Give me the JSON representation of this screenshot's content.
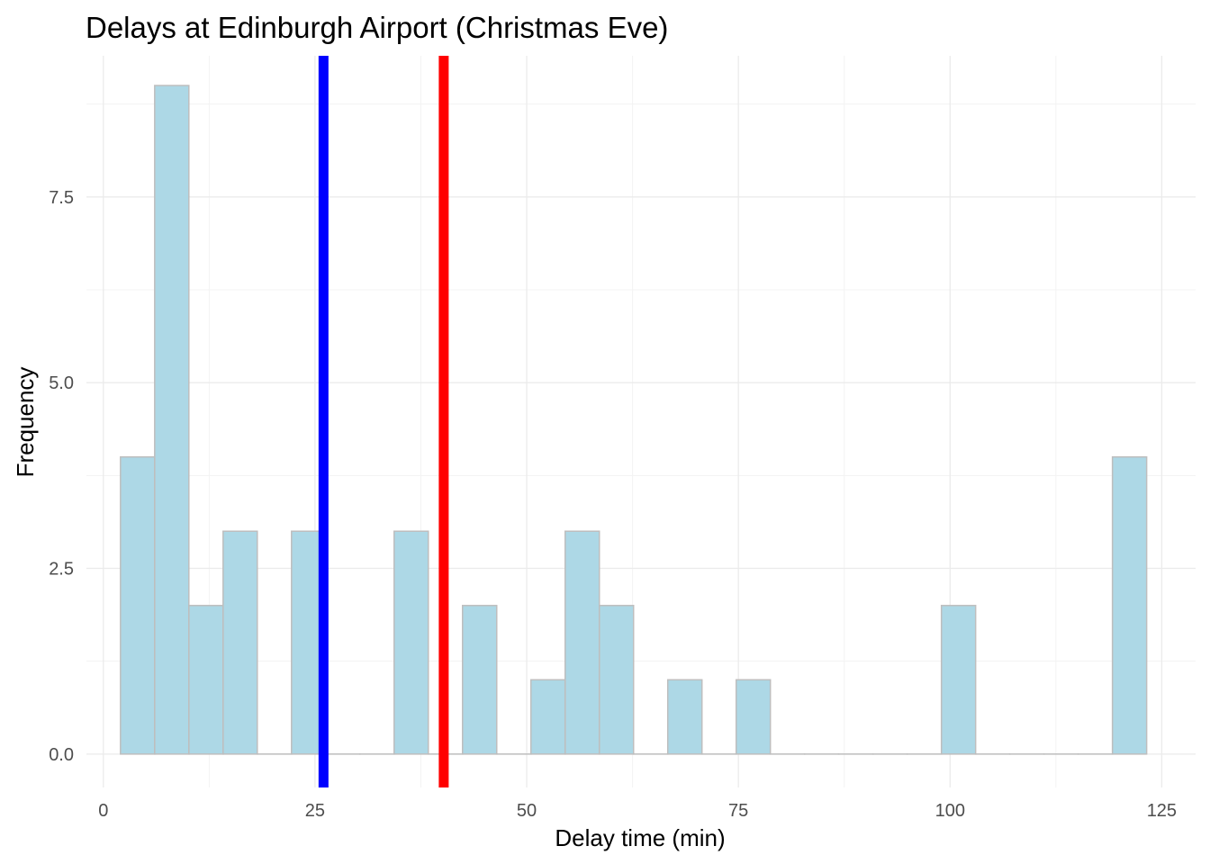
{
  "chart_data": {
    "type": "bar",
    "title": "Delays at Edinburgh Airport (Christmas Eve)",
    "xlabel": "Delay time (min)",
    "ylabel": "Frequency",
    "xlim": [
      -2,
      129
    ],
    "ylim": [
      -0.45,
      9.4
    ],
    "x_ticks": [
      0,
      25,
      50,
      75,
      100,
      125
    ],
    "x_tick_labels": [
      "0",
      "25",
      "50",
      "75",
      "100",
      "125"
    ],
    "y_ticks": [
      0,
      2.5,
      5,
      7.5
    ],
    "y_tick_labels": [
      "0.0",
      "2.5",
      "5.0",
      "7.5"
    ],
    "bin_width": 4.04,
    "bins": [
      {
        "x0": 2.02,
        "x1": 6.06,
        "count": 4
      },
      {
        "x0": 6.06,
        "x1": 10.1,
        "count": 9
      },
      {
        "x0": 10.1,
        "x1": 14.14,
        "count": 2
      },
      {
        "x0": 14.14,
        "x1": 18.18,
        "count": 3
      },
      {
        "x0": 18.18,
        "x1": 22.22,
        "count": 0
      },
      {
        "x0": 22.22,
        "x1": 26.26,
        "count": 3
      },
      {
        "x0": 26.26,
        "x1": 30.3,
        "count": 0
      },
      {
        "x0": 30.3,
        "x1": 34.34,
        "count": 0
      },
      {
        "x0": 34.34,
        "x1": 38.38,
        "count": 3
      },
      {
        "x0": 38.38,
        "x1": 42.42,
        "count": 0
      },
      {
        "x0": 42.42,
        "x1": 46.46,
        "count": 2
      },
      {
        "x0": 46.46,
        "x1": 50.5,
        "count": 0
      },
      {
        "x0": 50.5,
        "x1": 54.54,
        "count": 1
      },
      {
        "x0": 54.54,
        "x1": 58.58,
        "count": 3
      },
      {
        "x0": 58.58,
        "x1": 62.62,
        "count": 2
      },
      {
        "x0": 62.62,
        "x1": 66.66,
        "count": 0
      },
      {
        "x0": 66.66,
        "x1": 70.7,
        "count": 1
      },
      {
        "x0": 70.7,
        "x1": 74.74,
        "count": 0
      },
      {
        "x0": 74.74,
        "x1": 78.78,
        "count": 1
      },
      {
        "x0": 78.78,
        "x1": 82.82,
        "count": 0
      },
      {
        "x0": 82.82,
        "x1": 86.86,
        "count": 0
      },
      {
        "x0": 86.86,
        "x1": 90.9,
        "count": 0
      },
      {
        "x0": 90.9,
        "x1": 94.94,
        "count": 0
      },
      {
        "x0": 94.94,
        "x1": 98.98,
        "count": 0
      },
      {
        "x0": 98.98,
        "x1": 103.02,
        "count": 2
      },
      {
        "x0": 103.02,
        "x1": 107.06,
        "count": 0
      },
      {
        "x0": 107.06,
        "x1": 111.1,
        "count": 0
      },
      {
        "x0": 111.1,
        "x1": 115.14,
        "count": 0
      },
      {
        "x0": 115.14,
        "x1": 119.18,
        "count": 0
      },
      {
        "x0": 119.18,
        "x1": 123.22,
        "count": 4
      }
    ],
    "reference_lines": [
      {
        "x": 26,
        "color": "#0000ff"
      },
      {
        "x": 40.2,
        "color": "#ff0000"
      }
    ],
    "colors": {
      "bar_fill": "#add8e6",
      "bar_stroke": "#bebebe",
      "grid_major": "#ebebeb",
      "grid_minor": "#f3f3f3"
    },
    "grid": true,
    "legend": "none"
  }
}
